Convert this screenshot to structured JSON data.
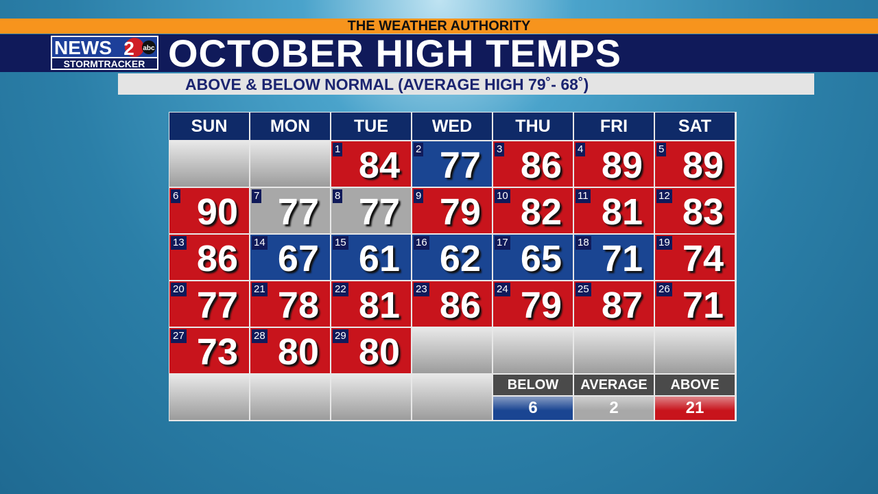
{
  "banner": "THE WEATHER AUTHORITY",
  "logo": {
    "news": "NEWS",
    "two": "2",
    "network": "abc",
    "tagline": "STORMTRACKER"
  },
  "title": "OCTOBER HIGH TEMPS",
  "subtitle": "ABOVE & BELOW NORMAL (AVERAGE HIGH 79˚- 68˚)",
  "days": [
    "SUN",
    "MON",
    "TUE",
    "WED",
    "THU",
    "FRI",
    "SAT"
  ],
  "weeks": [
    [
      null,
      null,
      {
        "day": 1,
        "high": 84,
        "color": "#c8141c"
      },
      {
        "day": 2,
        "high": 77,
        "color": "#1a4592"
      },
      {
        "day": 3,
        "high": 86,
        "color": "#c8141c"
      },
      {
        "day": 4,
        "high": 89,
        "color": "#c8141c"
      },
      {
        "day": 5,
        "high": 89,
        "color": "#c8141c"
      }
    ],
    [
      {
        "day": 6,
        "high": 90,
        "color": "#c8141c"
      },
      {
        "day": 7,
        "high": 77,
        "color": "#a8a8a8"
      },
      {
        "day": 8,
        "high": 77,
        "color": "#a8a8a8"
      },
      {
        "day": 9,
        "high": 79,
        "color": "#c8141c"
      },
      {
        "day": 10,
        "high": 82,
        "color": "#c8141c"
      },
      {
        "day": 11,
        "high": 81,
        "color": "#c8141c"
      },
      {
        "day": 12,
        "high": 83,
        "color": "#c8141c"
      }
    ],
    [
      {
        "day": 13,
        "high": 86,
        "color": "#c8141c"
      },
      {
        "day": 14,
        "high": 67,
        "color": "#1a4592"
      },
      {
        "day": 15,
        "high": 61,
        "color": "#1a4592"
      },
      {
        "day": 16,
        "high": 62,
        "color": "#1a4592"
      },
      {
        "day": 17,
        "high": 65,
        "color": "#1a4592"
      },
      {
        "day": 18,
        "high": 71,
        "color": "#1a4592"
      },
      {
        "day": 19,
        "high": 74,
        "color": "#c8141c"
      }
    ],
    [
      {
        "day": 20,
        "high": 77,
        "color": "#c8141c"
      },
      {
        "day": 21,
        "high": 78,
        "color": "#c8141c"
      },
      {
        "day": 22,
        "high": 81,
        "color": "#c8141c"
      },
      {
        "day": 23,
        "high": 86,
        "color": "#c8141c"
      },
      {
        "day": 24,
        "high": 79,
        "color": "#c8141c"
      },
      {
        "day": 25,
        "high": 87,
        "color": "#c8141c"
      },
      {
        "day": 26,
        "high": 71,
        "color": "#c8141c"
      }
    ],
    [
      {
        "day": 27,
        "high": 73,
        "color": "#c8141c"
      },
      {
        "day": 28,
        "high": 80,
        "color": "#c8141c"
      },
      {
        "day": 29,
        "high": 80,
        "color": "#c8141c"
      },
      null,
      null,
      null,
      null
    ]
  ],
  "legend": [
    {
      "label": "BELOW",
      "count": 6,
      "color": "#1a4592"
    },
    {
      "label": "AVERAGE",
      "count": 2,
      "color": "#a8a8a8"
    },
    {
      "label": "ABOVE",
      "count": 21,
      "color": "#c8141c"
    }
  ]
}
